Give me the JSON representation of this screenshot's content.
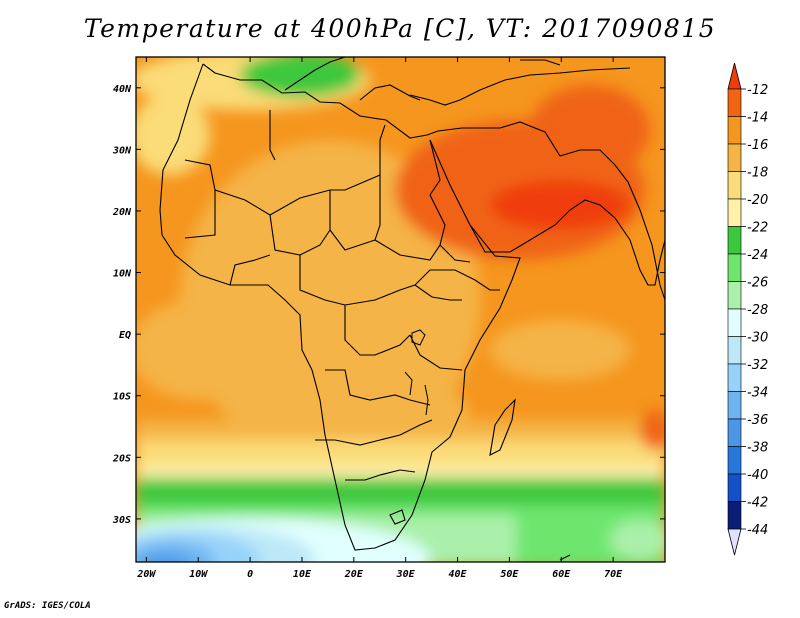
{
  "title": "Temperature at 400hPa [C], VT: 2017090815",
  "footer": "GrADS: IGES/COLA",
  "map": {
    "lon_range": [
      -22,
      80
    ],
    "lat_range": [
      -37,
      45
    ],
    "lon_ticks": [
      {
        "value": -20,
        "label": "20W"
      },
      {
        "value": -10,
        "label": "10W"
      },
      {
        "value": 0,
        "label": "0"
      },
      {
        "value": 10,
        "label": "10E"
      },
      {
        "value": 20,
        "label": "20E"
      },
      {
        "value": 30,
        "label": "30E"
      },
      {
        "value": 40,
        "label": "40E"
      },
      {
        "value": 50,
        "label": "50E"
      },
      {
        "value": 60,
        "label": "60E"
      },
      {
        "value": 70,
        "label": "70E"
      }
    ],
    "lat_ticks": [
      {
        "value": 40,
        "label": "40N"
      },
      {
        "value": 30,
        "label": "30N"
      },
      {
        "value": 20,
        "label": "20N"
      },
      {
        "value": 10,
        "label": "10N"
      },
      {
        "value": 0,
        "label": "EQ"
      },
      {
        "value": -10,
        "label": "10S"
      },
      {
        "value": -20,
        "label": "20S"
      },
      {
        "value": -30,
        "label": "30S"
      }
    ]
  },
  "colorbar": {
    "levels": [
      "-12",
      "-14",
      "-16",
      "-18",
      "-20",
      "-22",
      "-24",
      "-26",
      "-28",
      "-30",
      "-32",
      "-34",
      "-36",
      "-38",
      "-40",
      "-42",
      "-44"
    ],
    "colors": [
      "#f03c0a",
      "#f06414",
      "#f5961e",
      "#f5b446",
      "#fadc78",
      "#fff0aa",
      "#3cc83c",
      "#6ee66e",
      "#aaf0aa",
      "#e1ffff",
      "#bce8f8",
      "#96d2fa",
      "#6eb4f0",
      "#4b96e6",
      "#2878dc",
      "#1450c8",
      "#0a1e78"
    ],
    "top_arrow_color": "#f03c0a",
    "bottom_arrow_color": "#e1e1ff"
  }
}
